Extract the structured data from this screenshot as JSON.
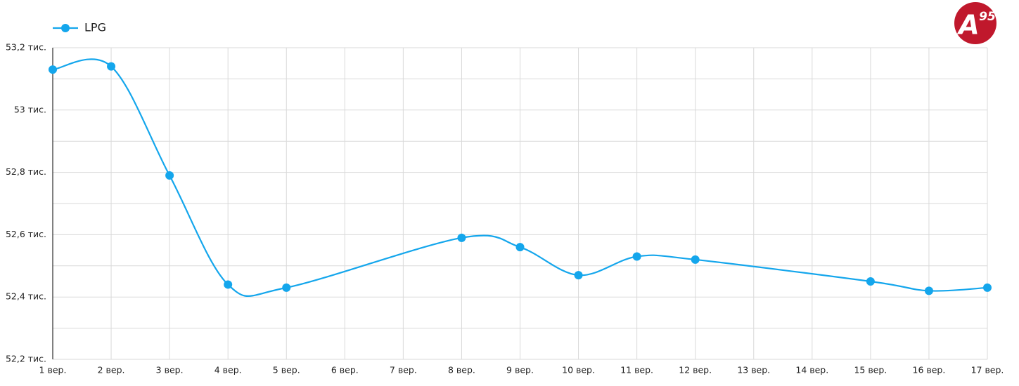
{
  "chart_data": {
    "type": "line",
    "x": [
      1,
      2,
      3,
      4,
      5,
      8,
      9,
      10,
      11,
      12,
      15,
      16,
      17
    ],
    "series": [
      {
        "name": "LPG",
        "color": "#14a6ec",
        "values": [
          53.13,
          53.14,
          52.79,
          52.44,
          52.43,
          52.59,
          52.56,
          52.47,
          52.53,
          52.52,
          52.45,
          52.42,
          52.43
        ]
      }
    ],
    "xlim": [
      1,
      17
    ],
    "xticks": [
      {
        "value": 1,
        "label": "1 вер."
      },
      {
        "value": 2,
        "label": "2 вер."
      },
      {
        "value": 3,
        "label": "3 вер."
      },
      {
        "value": 4,
        "label": "4 вер."
      },
      {
        "value": 5,
        "label": "5 вер."
      },
      {
        "value": 6,
        "label": "6 вер."
      },
      {
        "value": 7,
        "label": "7 вер."
      },
      {
        "value": 8,
        "label": "8 вер."
      },
      {
        "value": 9,
        "label": "9 вер."
      },
      {
        "value": 10,
        "label": "10 вер."
      },
      {
        "value": 11,
        "label": "11 вер."
      },
      {
        "value": 12,
        "label": "12 вер."
      },
      {
        "value": 13,
        "label": "13 вер."
      },
      {
        "value": 14,
        "label": "14 вер."
      },
      {
        "value": 15,
        "label": "15 вер."
      },
      {
        "value": 16,
        "label": "16 вер."
      },
      {
        "value": 17,
        "label": "17 вер."
      }
    ],
    "ylim": [
      52.2,
      53.2
    ],
    "yticks": [
      {
        "value": 52.2,
        "label": "52,2 тис."
      },
      {
        "value": 52.4,
        "label": "52,4 тис."
      },
      {
        "value": 52.6,
        "label": "52,6 тис."
      },
      {
        "value": 52.8,
        "label": "52,8 тис."
      },
      {
        "value": 53,
        "label": "53 тис."
      },
      {
        "value": 53.2,
        "label": "53,2 тис."
      }
    ],
    "minor_yticks": [
      52.3,
      52.5,
      52.7,
      52.9,
      53.1
    ],
    "grid": true,
    "legend": "top-left"
  },
  "logo": {
    "letter": "A",
    "superscript": "95"
  }
}
